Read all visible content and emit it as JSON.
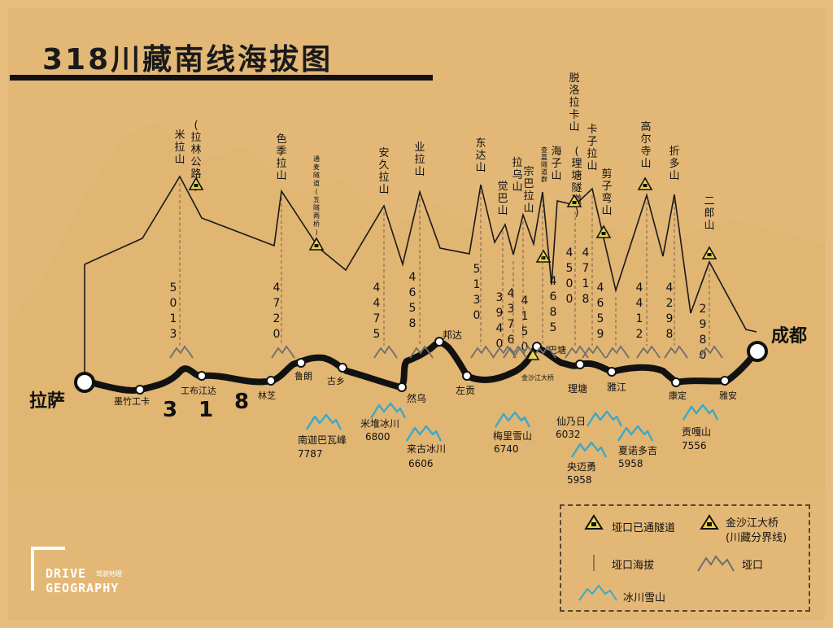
{
  "title": "318川藏南线海拔图",
  "route_number": [
    "3",
    "1",
    "8"
  ],
  "logo": {
    "line1": "DRIVE",
    "line2": "GEOGRAPHY",
    "cn": "驾驶地理"
  },
  "colors": {
    "background": "#e3b877",
    "route": "#111111",
    "glacier": "#3aa9c9",
    "tunnel": "#e8d84a",
    "pass": "#6e6e6e"
  },
  "passes": [
    {
      "name": "米拉山",
      "note": "(拉林公路)",
      "elevation": "5013"
    },
    {
      "name": "色季拉山",
      "elevation": "4720"
    },
    {
      "name": "通麦隧道",
      "note": "(五隧两桥)"
    },
    {
      "name": "安久拉山",
      "elevation": "4475"
    },
    {
      "name": "业拉山",
      "elevation": "4658"
    },
    {
      "name": "东达山",
      "elevation": "5130"
    },
    {
      "name": "觉巴山",
      "elevation": "3940"
    },
    {
      "name": "拉乌山",
      "elevation": "4376"
    },
    {
      "name": "宗巴拉山",
      "elevation": "4150"
    },
    {
      "name": "海子山",
      "elevation": "4685"
    },
    {
      "name": "脱洛拉卡山",
      "note": "(理塘隧道)",
      "elevation": "4500"
    },
    {
      "name": "卡子拉山",
      "elevation": "4718"
    },
    {
      "name": "剪子弯山",
      "elevation": "4659"
    },
    {
      "name": "高尔寺山",
      "elevation": "4412"
    },
    {
      "name": "折多山",
      "elevation": "4298"
    },
    {
      "name": "二郎山",
      "elevation": "2980"
    }
  ],
  "small_note": "查嘉隧道群",
  "bridge_label": "金沙江大桥",
  "towns": [
    "拉萨",
    "墨竹工卡",
    "工布江达",
    "林芝",
    "鲁朗",
    "古乡",
    "然乌",
    "邦达",
    "左贡",
    "巴塘",
    "理塘",
    "雅江",
    "康定",
    "雅安",
    "成都"
  ],
  "peaks": [
    {
      "name": "南迦巴瓦峰",
      "elevation": "7787"
    },
    {
      "name": "米堆冰川",
      "elevation": "6800"
    },
    {
      "name": "来古冰川",
      "elevation": "6606"
    },
    {
      "name": "梅里雪山",
      "elevation": "6740"
    },
    {
      "name": "仙乃日",
      "elevation": "6032"
    },
    {
      "name": "央迈勇",
      "elevation": "5958"
    },
    {
      "name": "夏诺多吉",
      "elevation": "5958"
    },
    {
      "name": "贡嘎山",
      "elevation": "7556"
    }
  ],
  "legend": {
    "tunnel": "垭口已通隧道",
    "bridge": "金沙江大桥",
    "bridge_note": "(川藏分界线)",
    "elevation": "垭口海拔",
    "pass": "垭口",
    "glacier": "冰川雪山"
  }
}
